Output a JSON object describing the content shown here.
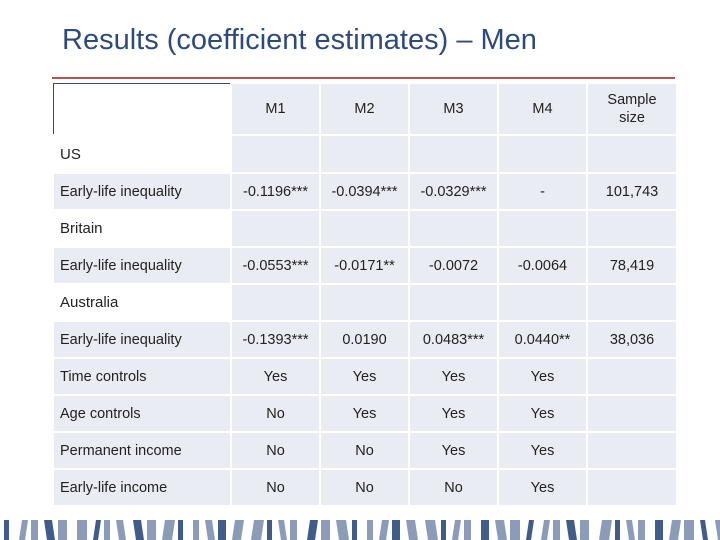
{
  "slide": {
    "title": "Results (coefficient estimates) – Men"
  },
  "table": {
    "columns": [
      "M1",
      "M2",
      "M3",
      "M4",
      "Sample size"
    ],
    "sections": [
      {
        "name": "US",
        "row_label": "Early-life inequality",
        "values": [
          "-0.1196***",
          "-0.0394***",
          "-0.0329***",
          "-",
          "101,743"
        ]
      },
      {
        "name": "Britain",
        "row_label": "Early-life inequality",
        "values": [
          "-0.0553***",
          "-0.0171**",
          "-0.0072",
          "-0.0064",
          "78,419"
        ]
      },
      {
        "name": "Australia",
        "row_label": "Early-life inequality",
        "values": [
          "-0.1393***",
          "0.0190",
          "0.0483***",
          "0.0440**",
          "38,036"
        ]
      }
    ],
    "controls": [
      {
        "label": "Time controls",
        "values": [
          "Yes",
          "Yes",
          "Yes",
          "Yes",
          ""
        ]
      },
      {
        "label": "Age controls",
        "values": [
          "No",
          "Yes",
          "Yes",
          "Yes",
          ""
        ]
      },
      {
        "label": "Permanent income",
        "values": [
          "No",
          "No",
          "Yes",
          "Yes",
          ""
        ]
      },
      {
        "label": "Early-life income",
        "values": [
          "No",
          "No",
          "No",
          "Yes",
          ""
        ]
      }
    ]
  },
  "colors": {
    "title": "#2e4a7d",
    "rule": "#c0504d",
    "cell_fill": "#e9ecf3",
    "stripe": "#2e4a7d"
  }
}
